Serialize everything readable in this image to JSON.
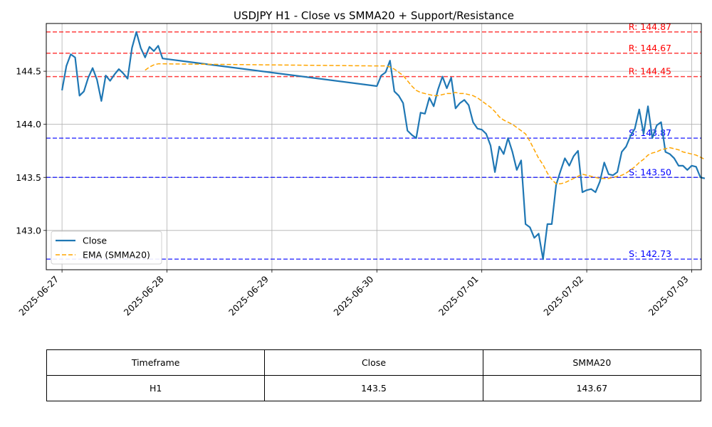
{
  "chart_data": {
    "type": "line",
    "title": "USDJPY H1 - Close vs SMMA20 + Support/Resistance",
    "xlabel": "",
    "ylabel": "",
    "x_ticks": [
      "2025-06-27",
      "2025-06-28",
      "2025-06-29",
      "2025-06-30",
      "2025-07-01",
      "2025-07-02",
      "2025-07-03"
    ],
    "y_ticks": [
      143.0,
      143.5,
      144.0,
      144.5
    ],
    "xlim": [
      "2025-06-26T20:24",
      "2025-07-03T02:12"
    ],
    "ylim": [
      142.63,
      144.95
    ],
    "grid": true,
    "legend": "lower-left",
    "series": [
      {
        "name": "Close",
        "color": "#1f77b4",
        "style": "solid",
        "points": [
          [
            "2025-06-27T00:00",
            144.32
          ],
          [
            "2025-06-27T01:00",
            144.55
          ],
          [
            "2025-06-27T02:00",
            144.66
          ],
          [
            "2025-06-27T03:00",
            144.63
          ],
          [
            "2025-06-27T04:00",
            144.27
          ],
          [
            "2025-06-27T05:00",
            144.31
          ],
          [
            "2025-06-27T06:00",
            144.44
          ],
          [
            "2025-06-27T07:00",
            144.53
          ],
          [
            "2025-06-27T08:00",
            144.42
          ],
          [
            "2025-06-27T09:00",
            144.22
          ],
          [
            "2025-06-27T10:00",
            144.46
          ],
          [
            "2025-06-27T11:00",
            144.41
          ],
          [
            "2025-06-27T12:00",
            144.47
          ],
          [
            "2025-06-27T13:00",
            144.52
          ],
          [
            "2025-06-27T14:00",
            144.48
          ],
          [
            "2025-06-27T15:00",
            144.43
          ],
          [
            "2025-06-27T16:00",
            144.72
          ],
          [
            "2025-06-27T17:00",
            144.87
          ],
          [
            "2025-06-27T18:00",
            144.72
          ],
          [
            "2025-06-27T19:00",
            144.63
          ],
          [
            "2025-06-27T20:00",
            144.73
          ],
          [
            "2025-06-27T21:00",
            144.69
          ],
          [
            "2025-06-27T22:00",
            144.74
          ],
          [
            "2025-06-27T23:00",
            144.62
          ],
          [
            "2025-06-30T00:00",
            144.36
          ],
          [
            "2025-06-30T01:00",
            144.46
          ],
          [
            "2025-06-30T02:00",
            144.49
          ],
          [
            "2025-06-30T03:00",
            144.6
          ],
          [
            "2025-06-30T04:00",
            144.31
          ],
          [
            "2025-06-30T05:00",
            144.27
          ],
          [
            "2025-06-30T06:00",
            144.2
          ],
          [
            "2025-06-30T07:00",
            143.94
          ],
          [
            "2025-06-30T08:00",
            143.9
          ],
          [
            "2025-06-30T09:00",
            143.87
          ],
          [
            "2025-06-30T10:00",
            144.11
          ],
          [
            "2025-06-30T11:00",
            144.1
          ],
          [
            "2025-06-30T12:00",
            144.25
          ],
          [
            "2025-06-30T13:00",
            144.17
          ],
          [
            "2025-06-30T14:00",
            144.33
          ],
          [
            "2025-06-30T15:00",
            144.45
          ],
          [
            "2025-06-30T16:00",
            144.34
          ],
          [
            "2025-06-30T17:00",
            144.44
          ],
          [
            "2025-06-30T18:00",
            144.15
          ],
          [
            "2025-06-30T19:00",
            144.2
          ],
          [
            "2025-06-30T20:00",
            144.23
          ],
          [
            "2025-06-30T21:00",
            144.18
          ],
          [
            "2025-06-30T22:00",
            144.02
          ],
          [
            "2025-06-30T23:00",
            143.96
          ],
          [
            "2025-07-01T00:00",
            143.95
          ],
          [
            "2025-07-01T01:00",
            143.91
          ],
          [
            "2025-07-01T02:00",
            143.8
          ],
          [
            "2025-07-01T03:00",
            143.55
          ],
          [
            "2025-07-01T04:00",
            143.79
          ],
          [
            "2025-07-01T05:00",
            143.72
          ],
          [
            "2025-07-01T06:00",
            143.87
          ],
          [
            "2025-07-01T07:00",
            143.74
          ],
          [
            "2025-07-01T08:00",
            143.57
          ],
          [
            "2025-07-01T09:00",
            143.66
          ],
          [
            "2025-07-01T10:00",
            143.06
          ],
          [
            "2025-07-01T11:00",
            143.03
          ],
          [
            "2025-07-01T12:00",
            142.93
          ],
          [
            "2025-07-01T13:00",
            142.97
          ],
          [
            "2025-07-01T14:00",
            142.73
          ],
          [
            "2025-07-01T15:00",
            143.06
          ],
          [
            "2025-07-01T16:00",
            143.06
          ],
          [
            "2025-07-01T17:00",
            143.43
          ],
          [
            "2025-07-01T18:00",
            143.56
          ],
          [
            "2025-07-01T19:00",
            143.68
          ],
          [
            "2025-07-01T20:00",
            143.61
          ],
          [
            "2025-07-01T21:00",
            143.7
          ],
          [
            "2025-07-01T22:00",
            143.75
          ],
          [
            "2025-07-01T23:00",
            143.36
          ],
          [
            "2025-07-02T00:00",
            143.38
          ],
          [
            "2025-07-02T01:00",
            143.39
          ],
          [
            "2025-07-02T02:00",
            143.36
          ],
          [
            "2025-07-02T03:00",
            143.46
          ],
          [
            "2025-07-02T04:00",
            143.64
          ],
          [
            "2025-07-02T05:00",
            143.53
          ],
          [
            "2025-07-02T06:00",
            143.52
          ],
          [
            "2025-07-02T07:00",
            143.55
          ],
          [
            "2025-07-02T08:00",
            143.74
          ],
          [
            "2025-07-02T09:00",
            143.79
          ],
          [
            "2025-07-02T10:00",
            143.89
          ],
          [
            "2025-07-02T11:00",
            143.96
          ],
          [
            "2025-07-02T12:00",
            144.14
          ],
          [
            "2025-07-02T13:00",
            143.91
          ],
          [
            "2025-07-02T14:00",
            144.17
          ],
          [
            "2025-07-02T15:00",
            143.87
          ],
          [
            "2025-07-02T16:00",
            143.99
          ],
          [
            "2025-07-02T17:00",
            144.02
          ],
          [
            "2025-07-02T18:00",
            143.74
          ],
          [
            "2025-07-02T19:00",
            143.72
          ],
          [
            "2025-07-02T20:00",
            143.68
          ],
          [
            "2025-07-02T21:00",
            143.61
          ],
          [
            "2025-07-02T22:00",
            143.61
          ],
          [
            "2025-07-02T23:00",
            143.57
          ],
          [
            "2025-07-03T00:00",
            143.61
          ],
          [
            "2025-07-03T01:00",
            143.6
          ],
          [
            "2025-07-03T02:00",
            143.5
          ],
          [
            "2025-07-03T03:00",
            143.49
          ]
        ]
      },
      {
        "name": "EMA (SMMA20)",
        "color": "#ffa500",
        "style": "dashed",
        "points": [
          [
            "2025-06-27T19:00",
            144.51
          ],
          [
            "2025-06-27T20:00",
            144.54
          ],
          [
            "2025-06-27T21:00",
            144.56
          ],
          [
            "2025-06-27T22:00",
            144.57
          ],
          [
            "2025-06-27T23:00",
            144.57
          ],
          [
            "2025-06-30T00:00",
            144.55
          ],
          [
            "2025-06-30T01:00",
            144.55
          ],
          [
            "2025-06-30T02:00",
            144.55
          ],
          [
            "2025-06-30T03:00",
            144.54
          ],
          [
            "2025-06-30T04:00",
            144.52
          ],
          [
            "2025-06-30T05:00",
            144.49
          ],
          [
            "2025-06-30T06:00",
            144.46
          ],
          [
            "2025-06-30T07:00",
            144.41
          ],
          [
            "2025-06-30T08:00",
            144.36
          ],
          [
            "2025-06-30T09:00",
            144.32
          ],
          [
            "2025-06-30T10:00",
            144.3
          ],
          [
            "2025-06-30T11:00",
            144.29
          ],
          [
            "2025-06-30T12:00",
            144.28
          ],
          [
            "2025-06-30T13:00",
            144.27
          ],
          [
            "2025-06-30T14:00",
            144.27
          ],
          [
            "2025-06-30T15:00",
            144.28
          ],
          [
            "2025-06-30T16:00",
            144.29
          ],
          [
            "2025-06-30T17:00",
            144.29
          ],
          [
            "2025-06-30T18:00",
            144.3
          ],
          [
            "2025-06-30T19:00",
            144.29
          ],
          [
            "2025-06-30T20:00",
            144.29
          ],
          [
            "2025-06-30T21:00",
            144.28
          ],
          [
            "2025-06-30T22:00",
            144.27
          ],
          [
            "2025-06-30T23:00",
            144.25
          ],
          [
            "2025-07-01T00:00",
            144.22
          ],
          [
            "2025-07-01T01:00",
            144.19
          ],
          [
            "2025-07-01T02:00",
            144.16
          ],
          [
            "2025-07-01T03:00",
            144.12
          ],
          [
            "2025-07-01T04:00",
            144.07
          ],
          [
            "2025-07-01T05:00",
            144.04
          ],
          [
            "2025-07-01T06:00",
            144.02
          ],
          [
            "2025-07-01T07:00",
            144.0
          ],
          [
            "2025-07-01T08:00",
            143.97
          ],
          [
            "2025-07-01T09:00",
            143.94
          ],
          [
            "2025-07-01T10:00",
            143.91
          ],
          [
            "2025-07-01T11:00",
            143.84
          ],
          [
            "2025-07-01T12:00",
            143.76
          ],
          [
            "2025-07-01T13:00",
            143.68
          ],
          [
            "2025-07-01T14:00",
            143.62
          ],
          [
            "2025-07-01T15:00",
            143.54
          ],
          [
            "2025-07-01T16:00",
            143.48
          ],
          [
            "2025-07-01T17:00",
            143.44
          ],
          [
            "2025-07-01T18:00",
            143.44
          ],
          [
            "2025-07-01T19:00",
            143.45
          ],
          [
            "2025-07-01T20:00",
            143.47
          ],
          [
            "2025-07-01T21:00",
            143.49
          ],
          [
            "2025-07-01T22:00",
            143.51
          ],
          [
            "2025-07-01T23:00",
            143.53
          ],
          [
            "2025-07-02T00:00",
            143.52
          ],
          [
            "2025-07-02T01:00",
            143.51
          ],
          [
            "2025-07-02T02:00",
            143.5
          ],
          [
            "2025-07-02T03:00",
            143.49
          ],
          [
            "2025-07-02T04:00",
            143.49
          ],
          [
            "2025-07-02T05:00",
            143.49
          ],
          [
            "2025-07-02T06:00",
            143.5
          ],
          [
            "2025-07-02T07:00",
            143.51
          ],
          [
            "2025-07-02T08:00",
            143.52
          ],
          [
            "2025-07-02T09:00",
            143.54
          ],
          [
            "2025-07-02T10:00",
            143.57
          ],
          [
            "2025-07-02T11:00",
            143.6
          ],
          [
            "2025-07-02T12:00",
            143.64
          ],
          [
            "2025-07-02T13:00",
            143.67
          ],
          [
            "2025-07-02T14:00",
            143.71
          ],
          [
            "2025-07-02T15:00",
            143.73
          ],
          [
            "2025-07-02T16:00",
            143.74
          ],
          [
            "2025-07-02T17:00",
            143.76
          ],
          [
            "2025-07-02T18:00",
            143.77
          ],
          [
            "2025-07-02T19:00",
            143.78
          ],
          [
            "2025-07-02T20:00",
            143.77
          ],
          [
            "2025-07-02T21:00",
            143.76
          ],
          [
            "2025-07-02T22:00",
            143.74
          ],
          [
            "2025-07-02T23:00",
            143.73
          ],
          [
            "2025-07-03T00:00",
            143.72
          ],
          [
            "2025-07-03T01:00",
            143.71
          ],
          [
            "2025-07-03T02:00",
            143.69
          ],
          [
            "2025-07-03T03:00",
            143.67
          ]
        ]
      }
    ],
    "levels": [
      {
        "kind": "resistance",
        "value": 144.87,
        "label": "R: 144.87",
        "color": "#ff0000"
      },
      {
        "kind": "resistance",
        "value": 144.67,
        "label": "R: 144.67",
        "color": "#ff0000"
      },
      {
        "kind": "resistance",
        "value": 144.45,
        "label": "R: 144.45",
        "color": "#ff0000"
      },
      {
        "kind": "support",
        "value": 143.87,
        "label": "S: 143.87",
        "color": "#0000ff"
      },
      {
        "kind": "support",
        "value": 143.5,
        "label": "S: 143.50",
        "color": "#0000ff"
      },
      {
        "kind": "support",
        "value": 142.73,
        "label": "S: 142.73",
        "color": "#0000ff"
      }
    ]
  },
  "table": {
    "headers": [
      "Timeframe",
      "Close",
      "SMMA20"
    ],
    "row": [
      "H1",
      "143.5",
      "143.67"
    ]
  }
}
